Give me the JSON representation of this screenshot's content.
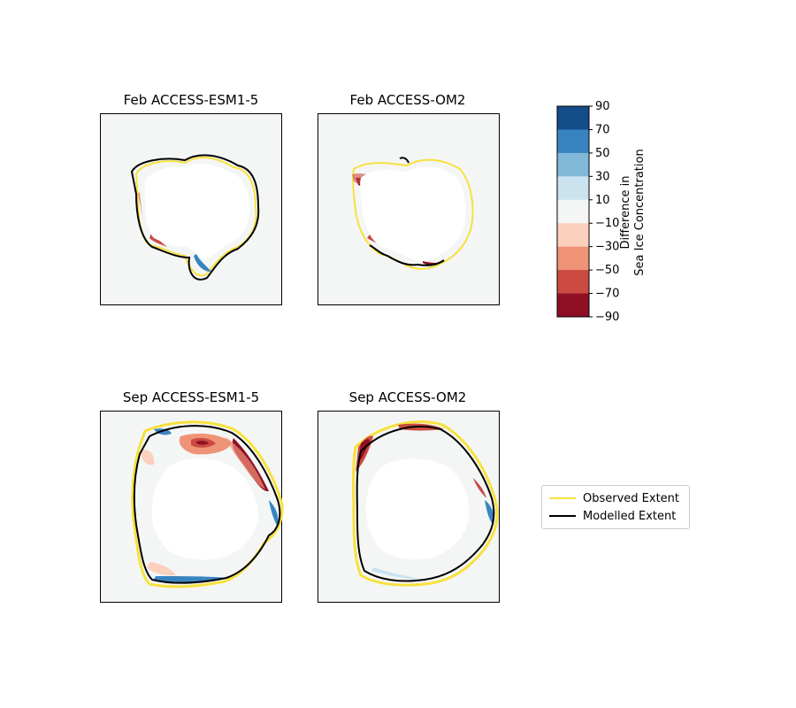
{
  "chart_data": [
    {
      "type": "heatmap",
      "title": "Feb ACCESS-ESM1-5",
      "month": "Feb",
      "model": "ACCESS-ESM1-5"
    },
    {
      "type": "heatmap",
      "title": "Feb ACCESS-OM2",
      "month": "Feb",
      "model": "ACCESS-OM2"
    },
    {
      "type": "heatmap",
      "title": "Sep ACCESS-ESM1-5",
      "month": "Sep",
      "model": "ACCESS-ESM1-5"
    },
    {
      "type": "heatmap",
      "title": "Sep ACCESS-OM2",
      "month": "Sep",
      "model": "ACCESS-OM2"
    }
  ],
  "colorbar": {
    "label_line1": "Difference in",
    "label_line2": "Sea Ice Concentration",
    "ticks": [
      "90",
      "70",
      "50",
      "30",
      "10",
      "−10",
      "−30",
      "−50",
      "−70",
      "−90"
    ],
    "levels": [
      90,
      70,
      50,
      30,
      10,
      -10,
      -30,
      -50,
      -70,
      -90
    ],
    "colors": [
      "#154c8a",
      "#3884c1",
      "#82b8d8",
      "#cbe2ef",
      "#f4f6f6",
      "#fbd0bd",
      "#ef9377",
      "#cb4a41",
      "#8f0f25"
    ]
  },
  "legend": {
    "items": [
      {
        "label": "Observed Extent",
        "color": "#f7e13d"
      },
      {
        "label": "Modelled Extent",
        "color": "#000000"
      }
    ]
  }
}
